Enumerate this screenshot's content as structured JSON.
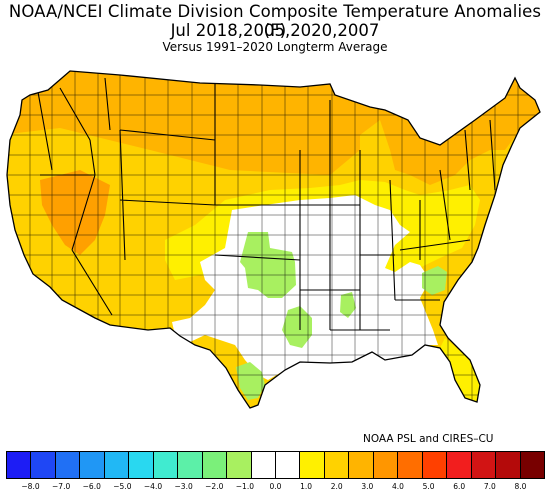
{
  "title": {
    "line1": "NOAA/NCEI Climate Division Composite Temperature Anomalies (F)",
    "line2": "Jul   2018,2005,2020,2007",
    "line3": "Versus 1991–2020 Longterm Average"
  },
  "credit": "NOAA PSL and CIRES–CU",
  "colorbar": {
    "colors": [
      "#1d1df5",
      "#1f47f5",
      "#2070f5",
      "#2097f5",
      "#21b8f5",
      "#29d8f0",
      "#40ebd0",
      "#5cf0a8",
      "#7bf07a",
      "#a8f060",
      "#ffffff",
      "#ffffff",
      "#fff000",
      "#ffd200",
      "#ffb400",
      "#ff9600",
      "#ff6e00",
      "#ff4000",
      "#f21e1e",
      "#d21414",
      "#b40a0a",
      "#780000"
    ],
    "ticks": [
      "−8.0",
      "−7.0",
      "−6.0",
      "−5.0",
      "−4.0",
      "−3.0",
      "−2.0",
      "−1.0",
      "0.0",
      "1.0",
      "2.0",
      "3.0",
      "4.0",
      "5.0",
      "6.0",
      "7.0",
      "8.0"
    ]
  },
  "map_colors": {
    "strong_warm": "#ffb400",
    "moderate_warm": "#ffd200",
    "slight_warm": "#fff000",
    "slight_cool": "#a8f060",
    "neutral": "#ffffff"
  }
}
